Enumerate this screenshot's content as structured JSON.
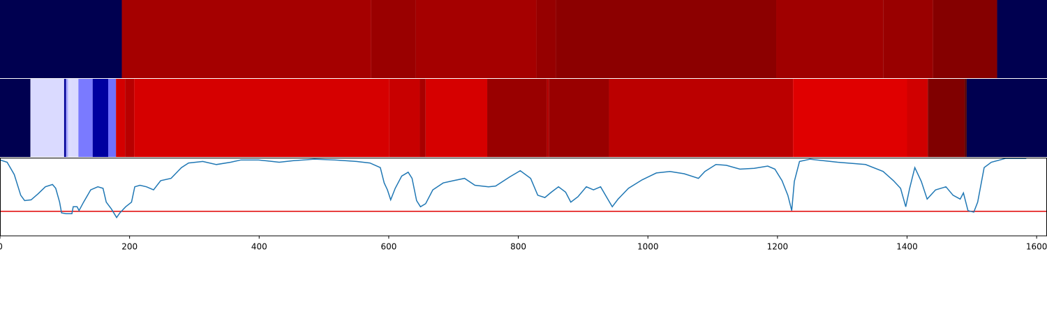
{
  "chart_data": [
    {
      "type": "strip",
      "edges": [
        0,
        188,
        573,
        642,
        828,
        858,
        1198,
        1363,
        1440,
        1539,
        1616
      ],
      "colors": [
        "#000050",
        "#a50000",
        "#9a0000",
        "#a50000",
        "#960000",
        "#8c0000",
        "#a00000",
        "#990000",
        "#850000",
        "#000050"
      ]
    },
    {
      "type": "strip",
      "edges": [
        0,
        47,
        99,
        102,
        105,
        109,
        121,
        143,
        167,
        179,
        193,
        207,
        601,
        648,
        657,
        752,
        844,
        847,
        940,
        1224,
        1400,
        1432,
        1489,
        1492,
        1616
      ],
      "colors": [
        "#000050",
        "#dadaff",
        "#000099",
        "#aaaaff",
        "#dadaff",
        "#dadaff",
        "#7a7aff",
        "#0000a0",
        "#7070ff",
        "#d40000",
        "#b80000",
        "#d60000",
        "#c80000",
        "#a80000",
        "#d60000",
        "#990000",
        "#b00000",
        "#990000",
        "#bb0000",
        "#e00000",
        "#d00000",
        "#800000",
        "#550000",
        "#000050"
      ]
    },
    {
      "type": "line",
      "x": [
        0,
        11,
        22,
        32,
        38,
        48,
        59,
        70,
        81,
        86,
        92,
        95,
        102,
        111,
        113,
        119,
        122,
        129,
        140,
        151,
        159,
        164,
        172,
        180,
        185,
        194,
        203,
        208,
        216,
        226,
        237,
        248,
        264,
        280,
        291,
        313,
        334,
        356,
        372,
        399,
        431,
        453,
        485,
        517,
        550,
        571,
        587,
        593,
        598,
        603,
        610,
        620,
        630,
        636,
        643,
        649,
        657,
        668,
        684,
        700,
        717,
        733,
        754,
        765,
        787,
        803,
        819,
        830,
        841,
        851,
        862,
        873,
        881,
        892,
        905,
        916,
        927,
        938,
        945,
        954,
        970,
        991,
        1013,
        1034,
        1056,
        1078,
        1088,
        1105,
        1121,
        1142,
        1164,
        1185,
        1196,
        1207,
        1216,
        1222,
        1226,
        1234,
        1250,
        1293,
        1336,
        1363,
        1379,
        1390,
        1398,
        1404,
        1412,
        1422,
        1431,
        1444,
        1460,
        1471,
        1482,
        1487,
        1494,
        1503,
        1509,
        1519,
        1530,
        1552,
        1584
      ],
      "values": [
        0.98,
        0.95,
        0.79,
        0.52,
        0.45,
        0.46,
        0.54,
        0.63,
        0.66,
        0.61,
        0.43,
        0.29,
        0.28,
        0.28,
        0.37,
        0.37,
        0.32,
        0.43,
        0.59,
        0.63,
        0.61,
        0.43,
        0.34,
        0.23,
        0.29,
        0.37,
        0.43,
        0.63,
        0.65,
        0.63,
        0.59,
        0.71,
        0.74,
        0.88,
        0.94,
        0.96,
        0.92,
        0.95,
        0.98,
        0.98,
        0.95,
        0.97,
        0.99,
        0.98,
        0.96,
        0.94,
        0.88,
        0.68,
        0.59,
        0.46,
        0.61,
        0.77,
        0.82,
        0.74,
        0.45,
        0.37,
        0.41,
        0.59,
        0.68,
        0.71,
        0.74,
        0.65,
        0.63,
        0.64,
        0.76,
        0.84,
        0.74,
        0.52,
        0.49,
        0.56,
        0.63,
        0.56,
        0.43,
        0.5,
        0.63,
        0.59,
        0.63,
        0.47,
        0.37,
        0.47,
        0.61,
        0.72,
        0.81,
        0.83,
        0.8,
        0.74,
        0.83,
        0.92,
        0.91,
        0.86,
        0.87,
        0.9,
        0.86,
        0.71,
        0.52,
        0.32,
        0.7,
        0.96,
        0.99,
        0.95,
        0.92,
        0.83,
        0.71,
        0.61,
        0.37,
        0.61,
        0.88,
        0.7,
        0.47,
        0.59,
        0.63,
        0.52,
        0.47,
        0.55,
        0.32,
        0.3,
        0.43,
        0.88,
        0.95,
        1.0,
        1.0
      ],
      "color": "#1f77b4",
      "threshold": 0.31,
      "threshold_color": "#e00000",
      "xlim": [
        0,
        1616
      ],
      "ylim": [
        0,
        1
      ],
      "xticks": [
        0,
        200,
        400,
        600,
        800,
        1000,
        1200,
        1400,
        1600
      ]
    }
  ]
}
